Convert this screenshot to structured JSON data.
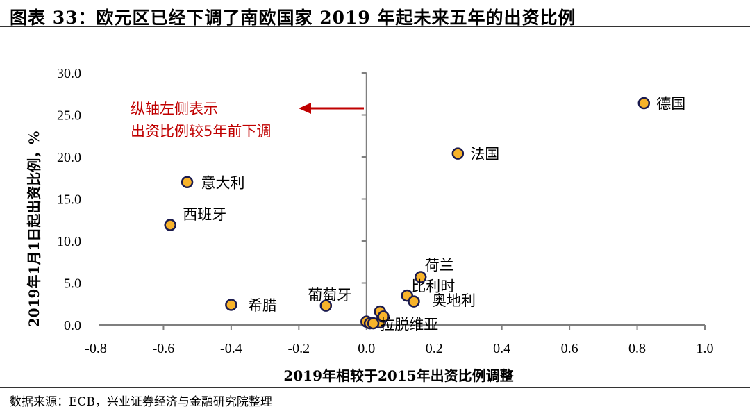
{
  "header": {
    "title": "图表 33：欧元区已经下调了南欧国家 2019 年起未来五年的出资比例"
  },
  "footer": {
    "source": "数据来源：ECB，兴业证券经济与金融研究院整理"
  },
  "colors": {
    "marker_fill": "#f7b32b",
    "marker_edge": "#1a1a4e",
    "annotation": "#c00000",
    "axis": "#7f7f7f"
  },
  "chart_data": {
    "type": "scatter",
    "title": "",
    "xlabel": "2019年相较于2015年出资比例调整",
    "ylabel": "2019年1月1日起出资比例，%",
    "xlim": [
      -0.8,
      1.0
    ],
    "ylim": [
      0.0,
      30.0
    ],
    "xticks": [
      "-0.8",
      "-0.6",
      "-0.4",
      "-0.2",
      "0.0",
      "0.2",
      "0.4",
      "0.6",
      "0.8",
      "1.0"
    ],
    "yticks": [
      "0.0",
      "5.0",
      "10.0",
      "15.0",
      "20.0",
      "25.0",
      "30.0"
    ],
    "grid": false,
    "points": [
      {
        "label": "德国",
        "x": 0.82,
        "y": 26.4
      },
      {
        "label": "法国",
        "x": 0.27,
        "y": 20.4
      },
      {
        "label": "意大利",
        "x": -0.53,
        "y": 17.0
      },
      {
        "label": "西班牙",
        "x": -0.58,
        "y": 11.9
      },
      {
        "label": "荷兰",
        "x": 0.16,
        "y": 5.7
      },
      {
        "label": "比利时",
        "x": 0.12,
        "y": 3.5
      },
      {
        "label": "奥地利",
        "x": 0.14,
        "y": 2.8
      },
      {
        "label": "希腊",
        "x": -0.4,
        "y": 2.4
      },
      {
        "label": "葡萄牙",
        "x": -0.12,
        "y": 2.3
      },
      {
        "label": "拉脱维亚",
        "x": 0.04,
        "y": 0.3
      },
      {
        "label": "",
        "x": 0.04,
        "y": 1.6
      },
      {
        "label": "",
        "x": 0.05,
        "y": 1.0
      },
      {
        "label": "",
        "x": 0.0,
        "y": 0.4
      },
      {
        "label": "",
        "x": 0.01,
        "y": 0.2
      },
      {
        "label": "",
        "x": 0.02,
        "y": 0.2
      }
    ],
    "annotation": {
      "lines": [
        "纵轴左侧表示",
        "出资比例较5年前下调"
      ]
    }
  }
}
